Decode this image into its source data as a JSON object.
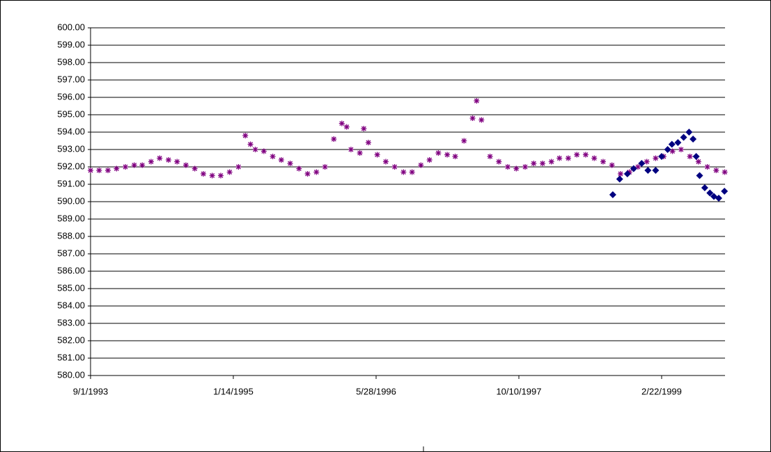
{
  "chart_data": {
    "type": "scatter",
    "xlim": [
      "9/1/1993",
      "10/2/1999"
    ],
    "xticks": [
      "9/1/1993",
      "1/14/1995",
      "5/28/1996",
      "10/10/1997",
      "2/22/1999"
    ],
    "ylim": [
      580,
      600
    ],
    "yticks": [
      {
        "value": 580,
        "label": "580.00"
      },
      {
        "value": 581,
        "label": "581.00"
      },
      {
        "value": 582,
        "label": "582.00"
      },
      {
        "value": 583,
        "label": "583.00"
      },
      {
        "value": 584,
        "label": "584.00"
      },
      {
        "value": 585,
        "label": "585.00"
      },
      {
        "value": 586,
        "label": "586.00"
      },
      {
        "value": 587,
        "label": "587.00"
      },
      {
        "value": 588,
        "label": "588.00"
      },
      {
        "value": 589,
        "label": "589.00"
      },
      {
        "value": 590,
        "label": "590.00"
      },
      {
        "value": 591,
        "label": "591.00"
      },
      {
        "value": 592,
        "label": "592.00"
      },
      {
        "value": 593,
        "label": "593.00"
      },
      {
        "value": 594,
        "label": "594.00"
      },
      {
        "value": 595,
        "label": "595.00"
      },
      {
        "value": 596,
        "label": "596.00"
      },
      {
        "value": 597,
        "label": "597.00"
      },
      {
        "value": 598,
        "label": "598.00"
      },
      {
        "value": 599,
        "label": "599.00"
      },
      {
        "value": 600,
        "label": "600.00"
      }
    ],
    "grid": true,
    "series": [
      {
        "color": "#800080",
        "marker": "asterisk",
        "x": [
          "9/1/1993",
          "10/1/1993",
          "11/1/1993",
          "12/1/1993",
          "1/1/1994",
          "2/1/1994",
          "3/1/1994",
          "4/1/1994",
          "5/1/1994",
          "6/1/1994",
          "7/1/1994",
          "8/1/1994",
          "9/1/1994",
          "10/1/1994",
          "11/1/1994",
          "12/1/1994",
          "1/1/1995",
          "2/1/1995",
          "2/25/1995",
          "3/15/1995",
          "4/1/1995",
          "5/1/1995",
          "6/1/1995",
          "7/1/1995",
          "8/1/1995",
          "9/1/1995",
          "10/1/1995",
          "11/1/1995",
          "12/1/1995",
          "1/1/1996",
          "1/29/1996",
          "2/15/1996",
          "3/1/1996",
          "4/1/1996",
          "4/15/1996",
          "5/1/1996",
          "6/1/1996",
          "7/1/1996",
          "8/1/1996",
          "9/1/1996",
          "10/1/1996",
          "11/1/1996",
          "12/1/1996",
          "1/1/1997",
          "2/1/1997",
          "3/1/1997",
          "4/1/1997",
          "5/1/1997",
          "5/15/1997",
          "6/1/1997",
          "7/1/1997",
          "8/1/1997",
          "9/1/1997",
          "10/1/1997",
          "11/1/1997",
          "12/1/1997",
          "1/1/1998",
          "2/1/1998",
          "3/1/1998",
          "4/1/1998",
          "5/1/1998",
          "6/1/1998",
          "7/1/1998",
          "8/1/1998",
          "9/1/1998",
          "10/1/1998",
          "11/1/1998",
          "12/1/1998",
          "1/1/1999",
          "2/1/1999",
          "3/1/1999",
          "4/1/1999",
          "5/1/1999",
          "6/1/1999",
          "7/1/1999",
          "8/1/1999",
          "9/1/1999",
          "10/1/1999"
        ],
        "values": [
          591.8,
          591.8,
          591.8,
          591.9,
          592.0,
          592.1,
          592.1,
          592.3,
          592.5,
          592.4,
          592.3,
          592.1,
          591.9,
          591.6,
          591.5,
          591.5,
          591.7,
          592.0,
          593.8,
          593.3,
          593.0,
          592.9,
          592.6,
          592.4,
          592.2,
          591.9,
          591.6,
          591.7,
          592.0,
          593.6,
          594.5,
          594.3,
          593.0,
          592.8,
          594.2,
          593.4,
          592.7,
          592.3,
          592.0,
          591.7,
          591.7,
          592.1,
          592.4,
          592.8,
          592.7,
          592.6,
          593.5,
          594.8,
          595.8,
          594.7,
          592.6,
          592.3,
          592.0,
          591.9,
          592.0,
          592.2,
          592.2,
          592.3,
          592.5,
          592.5,
          592.7,
          592.7,
          592.5,
          592.3,
          592.1,
          591.6,
          591.7,
          592.0,
          592.3,
          592.5,
          592.6,
          592.9,
          593.0,
          592.6,
          592.3,
          592.0,
          591.8,
          591.7
        ]
      },
      {
        "color": "#000080",
        "marker": "diamond",
        "x": [
          "9/4/1998",
          "9/28/1998",
          "10/25/1998",
          "11/16/1998",
          "12/14/1998",
          "1/5/1999",
          "2/1/1999",
          "2/22/1999",
          "3/15/1999",
          "3/30/1999",
          "4/20/1999",
          "5/10/1999",
          "5/29/1999",
          "6/12/1999",
          "6/23/1999",
          "7/5/1999",
          "7/23/1999",
          "8/10/1999",
          "8/24/1999",
          "9/10/1999",
          "9/30/1999"
        ],
        "values": [
          590.4,
          591.3,
          591.6,
          591.9,
          592.2,
          591.8,
          591.8,
          592.6,
          593.0,
          593.3,
          593.4,
          593.7,
          594.0,
          593.6,
          592.6,
          591.5,
          590.8,
          590.5,
          590.3,
          590.2,
          590.6
        ]
      }
    ]
  }
}
